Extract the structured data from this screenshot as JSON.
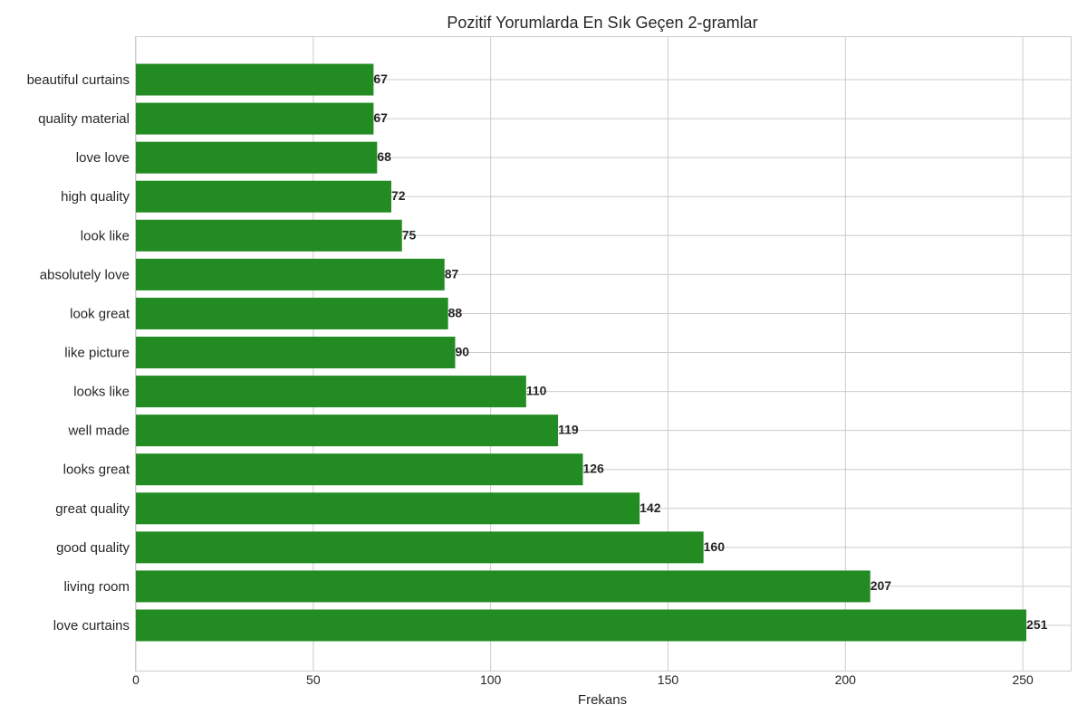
{
  "chart_data": {
    "type": "bar",
    "orientation": "horizontal",
    "title": "Pozitif Yorumlarda En Sık Geçen 2-gramlar",
    "xlabel": "Frekans",
    "ylabel": "",
    "categories": [
      "love curtains",
      "living room",
      "good quality",
      "great quality",
      "looks great",
      "well made",
      "looks like",
      "like picture",
      "look great",
      "absolutely love",
      "look like",
      "high quality",
      "love love",
      "quality material",
      "beautiful curtains"
    ],
    "values": [
      251,
      207,
      160,
      142,
      126,
      119,
      110,
      90,
      88,
      87,
      75,
      72,
      68,
      67,
      67
    ],
    "xticks": [
      0,
      50,
      100,
      150,
      200,
      250
    ],
    "xlim": [
      0,
      263.5
    ],
    "grid": true,
    "bar_color": "#228b22"
  }
}
